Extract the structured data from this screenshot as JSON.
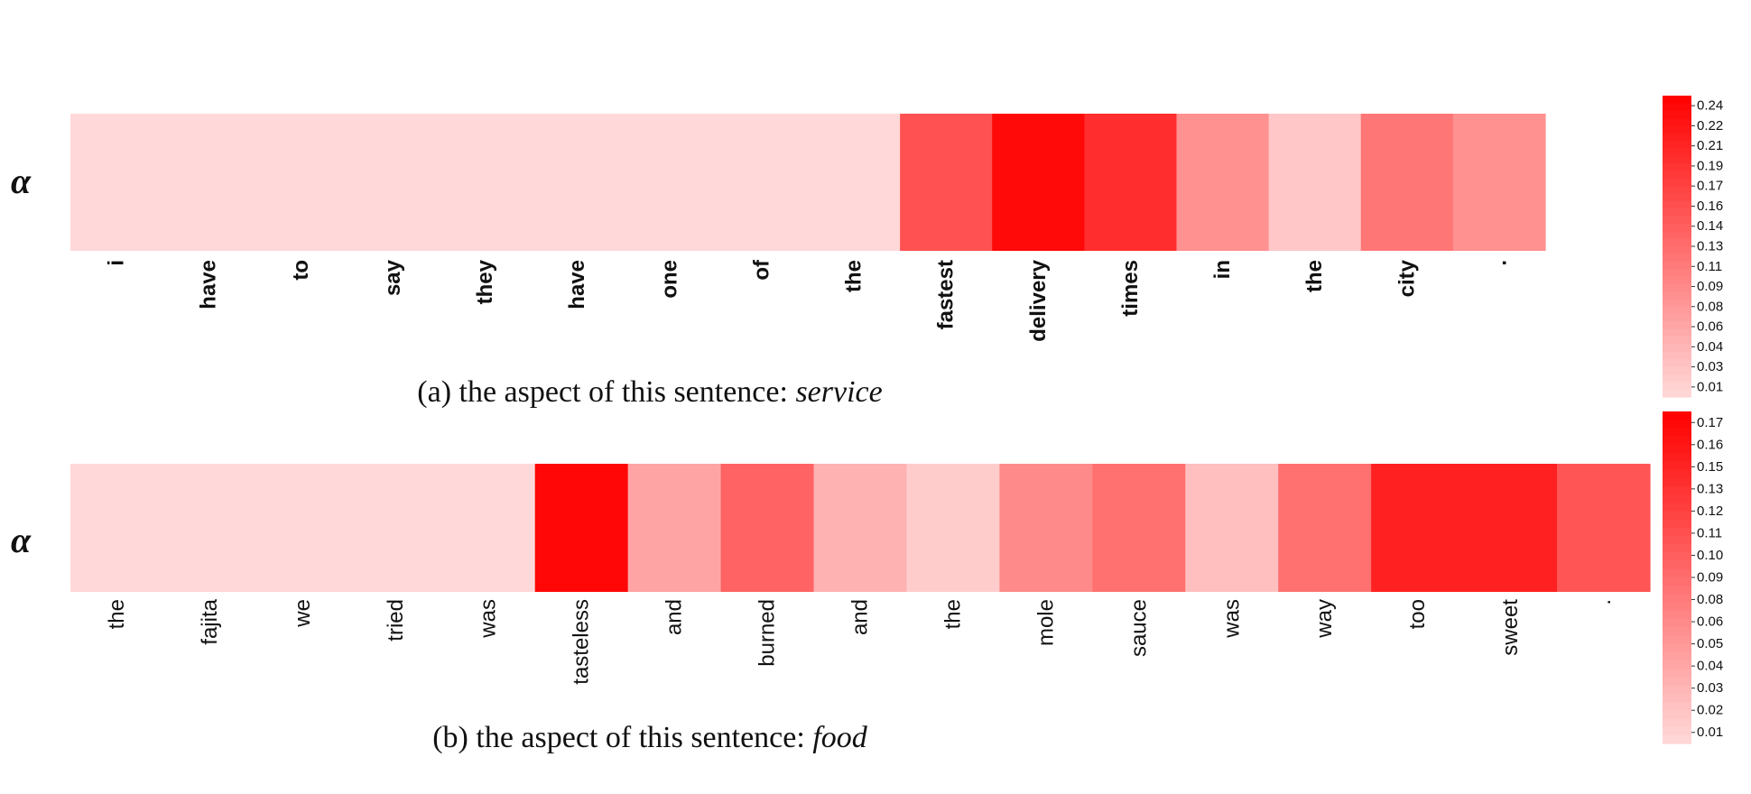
{
  "colors": {
    "low": "#ffd9d9",
    "high": "#ff0000"
  },
  "chart_data": [
    {
      "type": "heatmap",
      "row_label": "α",
      "caption_prefix": "(a) the aspect of this sentence: ",
      "caption_aspect": "service",
      "tokens": [
        "i",
        "have",
        "to",
        "say",
        "they",
        "have",
        "one",
        "of",
        "the",
        "fastest",
        "delivery",
        "times",
        "in",
        "the",
        "city",
        "."
      ],
      "values": [
        0.01,
        0.01,
        0.01,
        0.01,
        0.01,
        0.01,
        0.01,
        0.01,
        0.01,
        0.16,
        0.24,
        0.2,
        0.09,
        0.03,
        0.12,
        0.09
      ],
      "colorbar_ticks": [
        "0.24",
        "0.22",
        "0.21",
        "0.19",
        "0.17",
        "0.16",
        "0.14",
        "0.13",
        "0.11",
        "0.09",
        "0.08",
        "0.06",
        "0.04",
        "0.03",
        "0.01"
      ],
      "colorbar_range": [
        0.01,
        0.25
      ]
    },
    {
      "type": "heatmap",
      "row_label": "α",
      "caption_prefix": "(b) the aspect of this sentence: ",
      "caption_aspect": "food",
      "tokens": [
        "the",
        "fajita",
        "we",
        "tried",
        "was",
        "tasteless",
        "and",
        "burned",
        "and",
        "the",
        "mole",
        "sauce",
        "was",
        "way",
        "too",
        "sweet",
        "."
      ],
      "values": [
        0.01,
        0.01,
        0.01,
        0.01,
        0.01,
        0.17,
        0.05,
        0.1,
        0.04,
        0.02,
        0.07,
        0.09,
        0.03,
        0.09,
        0.15,
        0.15,
        0.11
      ],
      "colorbar_ticks": [
        "0.17",
        "0.16",
        "0.15",
        "0.13",
        "0.12",
        "0.11",
        "0.10",
        "0.09",
        "0.08",
        "0.06",
        "0.05",
        "0.04",
        "0.03",
        "0.02",
        "0.01"
      ],
      "colorbar_range": [
        0.01,
        0.175
      ]
    }
  ]
}
